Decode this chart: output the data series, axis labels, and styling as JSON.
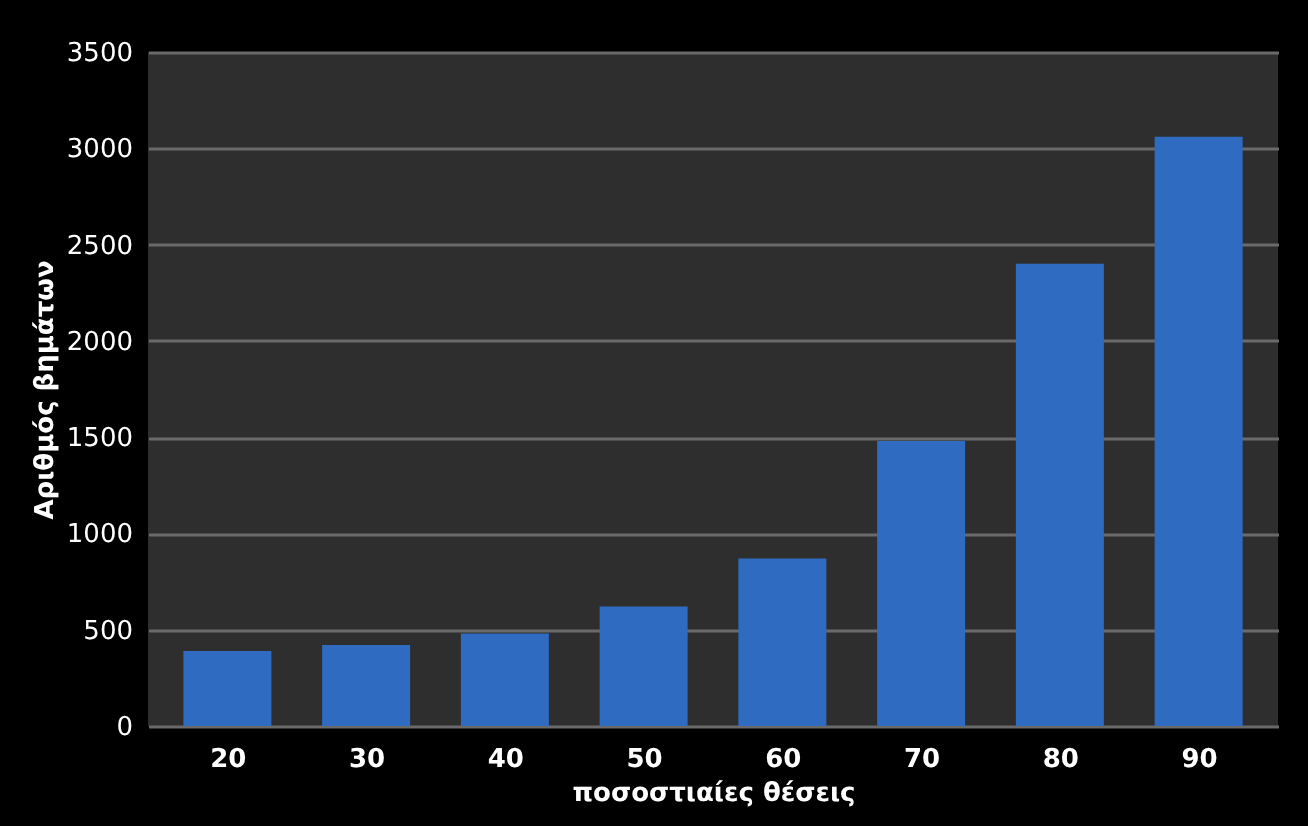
{
  "chart_data": {
    "type": "bar",
    "xlabel": "ποσοστιαίες θέσεις",
    "ylabel": "Αριθμός βημάτων",
    "categories": [
      "20",
      "30",
      "40",
      "50",
      "60",
      "70",
      "80",
      "90"
    ],
    "values": [
      390,
      420,
      480,
      620,
      870,
      1480,
      2400,
      3060
    ],
    "color": "#2f6bc0",
    "ylim": [
      0,
      3500
    ],
    "yticks": [
      0,
      500,
      1000,
      1500,
      2000,
      2500,
      3000,
      3500
    ],
    "grid": "y"
  }
}
